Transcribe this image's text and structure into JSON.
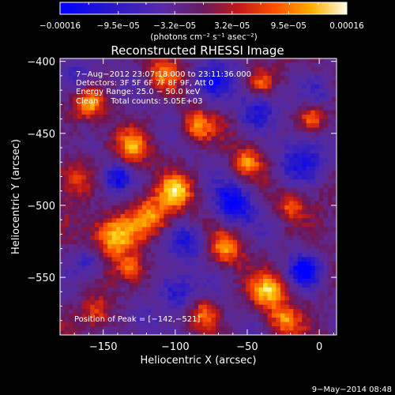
{
  "chart_data": {
    "type": "heatmap",
    "title": "Reconstructed RHESSI Image",
    "xlabel": "Heliocentric X (arcsec)",
    "ylabel": "Heliocentric Y (arcsec)",
    "xlim": [
      -180,
      12
    ],
    "ylim": [
      -590,
      -398
    ],
    "x_ticks": [
      {
        "value": -150,
        "label": "−150"
      },
      {
        "value": -100,
        "label": "−100"
      },
      {
        "value": -50,
        "label": "−50"
      },
      {
        "value": 0,
        "label": "0"
      }
    ],
    "y_ticks": [
      {
        "value": -400,
        "label": "−400"
      },
      {
        "value": -450,
        "label": "−450"
      },
      {
        "value": -500,
        "label": "−500"
      },
      {
        "value": -550,
        "label": "−550"
      }
    ],
    "colorbar": {
      "min": -0.00016,
      "max": 0.00016,
      "ticks": [
        {
          "value": -0.00016,
          "label": "−0.00016"
        },
        {
          "value": -9.5e-05,
          "label": "−9.5e−05"
        },
        {
          "value": -3.2e-05,
          "label": "−3.2e−05"
        },
        {
          "value": 3.2e-05,
          "label": "3.2e−05"
        },
        {
          "value": 9.5e-05,
          "label": "9.5e−05"
        },
        {
          "value": 0.00016,
          "label": "0.00016"
        }
      ],
      "units_label": "(photons cm⁻² s⁻¹ asec⁻²)",
      "colors": [
        "#0000ff",
        "#3010c0",
        "#4a2a8a",
        "#5a2ab0",
        "#8a1040",
        "#d01818",
        "#ff6a00",
        "#ffd000",
        "#fffbd8"
      ]
    },
    "peak": {
      "x": -142,
      "y": -521
    },
    "annotations": [
      "7−Aug−2012 23:07:18.000 to 23:11:36.000",
      "Detectors: 3F 5F 6F 7F 8F 9F, Att 0",
      "Energy Range: 25.0 − 50.0 keV",
      "Clean     Total counts: 5.05E+03",
      "Position of Peak = [−142,−521]"
    ],
    "grid": false
  },
  "footer": {
    "timestamp": "9−May−2014 08:48"
  }
}
